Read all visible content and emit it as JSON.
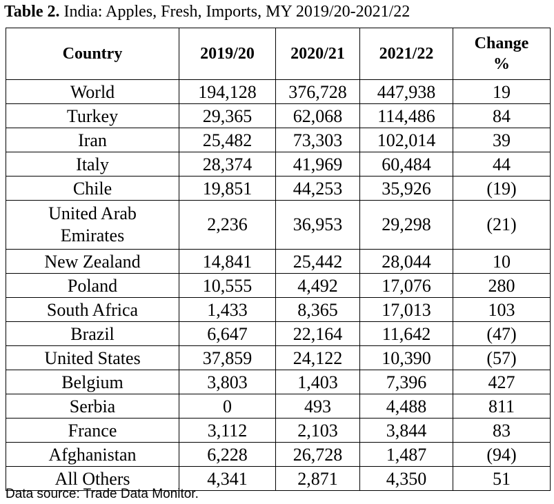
{
  "title": {
    "label": "Table 2.",
    "text": "India: Apples, Fresh, Imports, MY 2019/20-2021/22"
  },
  "table": {
    "headers": [
      "Country",
      "2019/20",
      "2020/21",
      "2021/22",
      "Change %"
    ],
    "rows": [
      [
        "World",
        "194,128",
        "376,728",
        "447,938",
        "19"
      ],
      [
        "Turkey",
        "29,365",
        "62,068",
        "114,486",
        "84"
      ],
      [
        "Iran",
        "25,482",
        "73,303",
        "102,014",
        "39"
      ],
      [
        "Italy",
        "28,374",
        "41,969",
        "60,484",
        "44"
      ],
      [
        "Chile",
        "19,851",
        "44,253",
        "35,926",
        "(19)"
      ],
      [
        "United Arab Emirates",
        "2,236",
        "36,953",
        "29,298",
        "(21)"
      ],
      [
        "New Zealand",
        "14,841",
        "25,442",
        "28,044",
        "10"
      ],
      [
        "Poland",
        "10,555",
        "4,492",
        "17,076",
        "280"
      ],
      [
        "South Africa",
        "1,433",
        "8,365",
        "17,013",
        "103"
      ],
      [
        "Brazil",
        "6,647",
        "22,164",
        "11,642",
        "(47)"
      ],
      [
        "United States",
        "37,859",
        "24,122",
        "10,390",
        "(57)"
      ],
      [
        "Belgium",
        "3,803",
        "1,403",
        "7,396",
        "427"
      ],
      [
        "Serbia",
        "0",
        "493",
        "4,488",
        "811"
      ],
      [
        "France",
        "3,112",
        "2,103",
        "3,844",
        "83"
      ],
      [
        "Afghanistan",
        "6,228",
        "26,728",
        "1,487",
        "(94)"
      ],
      [
        "All Others",
        "4,341",
        "2,871",
        "4,350",
        "51"
      ]
    ]
  },
  "source": "Data source: Trade Data Monitor."
}
